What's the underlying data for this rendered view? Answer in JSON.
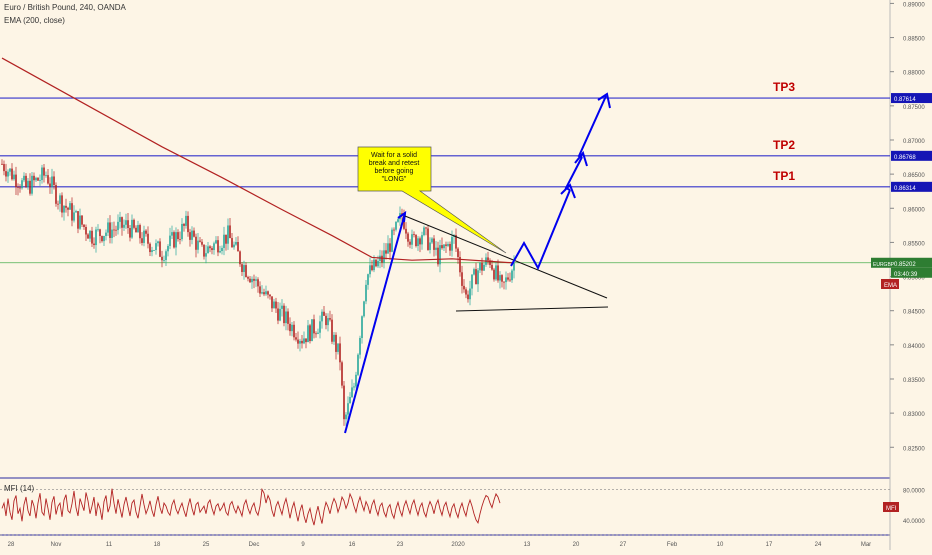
{
  "header": {
    "symbol_line": "Euro / British Pound, 240, OANDA",
    "indicator_line": "EMA (200, close)",
    "mfi_label": "MFI (14)"
  },
  "chart_data": [
    {
      "type": "candlestick",
      "title": "Euro / British Pound, 240, OANDA",
      "symbol": "EURGBP",
      "timeframe": "240",
      "x_axis": {
        "tick_labels": [
          "28",
          "Nov",
          "11",
          "18",
          "25",
          "Dec",
          "9",
          "16",
          "23",
          "2020",
          "13",
          "20",
          "27",
          "Feb",
          "10",
          "17",
          "24",
          "Mar"
        ]
      },
      "y_axis": {
        "range": [
          0.8205,
          0.8905
        ],
        "tick_labels": [
          "0.89000",
          "0.88500",
          "0.88000",
          "0.87500",
          "0.87000",
          "0.86500",
          "0.86000",
          "0.85500",
          "0.85000",
          "0.84500",
          "0.84000",
          "0.83500",
          "0.83000",
          "0.82500"
        ],
        "position": "right"
      },
      "price_anchors": [
        {
          "t": 0,
          "p": 0.8665
        },
        {
          "t": 12,
          "p": 0.863
        },
        {
          "t": 22,
          "p": 0.865
        },
        {
          "t": 28,
          "p": 0.8615
        },
        {
          "t": 45,
          "p": 0.856
        },
        {
          "t": 62,
          "p": 0.8575
        },
        {
          "t": 80,
          "p": 0.8535
        },
        {
          "t": 92,
          "p": 0.8575
        },
        {
          "t": 100,
          "p": 0.8535
        },
        {
          "t": 113,
          "p": 0.856
        },
        {
          "t": 120,
          "p": 0.852
        },
        {
          "t": 132,
          "p": 0.847
        },
        {
          "t": 150,
          "p": 0.841
        },
        {
          "t": 162,
          "p": 0.844
        },
        {
          "t": 169,
          "p": 0.838
        },
        {
          "t": 171,
          "p": 0.8285
        },
        {
          "t": 176,
          "p": 0.834
        },
        {
          "t": 182,
          "p": 0.85
        },
        {
          "t": 190,
          "p": 0.8525
        },
        {
          "t": 196,
          "p": 0.856
        },
        {
          "t": 200,
          "p": 0.859
        },
        {
          "t": 205,
          "p": 0.855
        },
        {
          "t": 210,
          "p": 0.8565
        },
        {
          "t": 218,
          "p": 0.853
        },
        {
          "t": 226,
          "p": 0.8555
        },
        {
          "t": 232,
          "p": 0.847
        },
        {
          "t": 238,
          "p": 0.851
        },
        {
          "t": 244,
          "p": 0.8525
        },
        {
          "t": 250,
          "p": 0.848
        },
        {
          "t": 256,
          "p": 0.852
        }
      ],
      "ema": {
        "name": "EMA",
        "period": 200,
        "color": "#b22222",
        "points": [
          {
            "t": 0,
            "p": 0.882
          },
          {
            "t": 40,
            "p": 0.8755
          },
          {
            "t": 80,
            "p": 0.869
          },
          {
            "t": 110,
            "p": 0.8645
          },
          {
            "t": 140,
            "p": 0.8598
          },
          {
            "t": 165,
            "p": 0.856
          },
          {
            "t": 185,
            "p": 0.8528
          },
          {
            "t": 205,
            "p": 0.8524
          },
          {
            "t": 225,
            "p": 0.8526
          },
          {
            "t": 245,
            "p": 0.8522
          },
          {
            "t": 256,
            "p": 0.852
          }
        ]
      },
      "horizontal_levels": [
        {
          "label": "TP3",
          "price": 0.87614,
          "price_label": "0.87614",
          "color": "#3333cc"
        },
        {
          "label": "TP2",
          "price": 0.86768,
          "price_label": "0.86768",
          "color": "#3333cc"
        },
        {
          "label": "TP1",
          "price": 0.86314,
          "price_label": "0.86314",
          "color": "#3333cc"
        },
        {
          "label": "",
          "price": 0.85202,
          "price_label": "0.85202",
          "color": "#4caf50"
        }
      ],
      "badges": {
        "symbol_badge": "EURGBP",
        "last_price": "0.85202",
        "countdown": "03:40:39",
        "ema_badge": "EMA"
      },
      "annotation": {
        "text": "Wait for a solid break and retest before going \"LONG\"",
        "lines": [
          "Wait for a solid",
          "break and retest",
          "before going",
          "\"LONG\""
        ]
      },
      "colors": {
        "background": "#fdf5e6",
        "up_candle": "#26a69a",
        "down_candle": "#b22222",
        "drawing": "#0000ee",
        "tp_label": "#c00000",
        "callout": "#ffff00"
      }
    },
    {
      "type": "line",
      "title": "MFI (14)",
      "y_axis": {
        "range": [
          20,
          95
        ],
        "tick_labels": [
          "80.0000",
          "40.0000"
        ]
      },
      "levels": [
        80,
        20
      ],
      "series": [
        {
          "name": "MFI",
          "color": "#b22222",
          "values": [
            55,
            62,
            45,
            68,
            50,
            40,
            65,
            72,
            48,
            55,
            38,
            60,
            70,
            52,
            45,
            66,
            58,
            42,
            62,
            75,
            50,
            46,
            68,
            55,
            40,
            63,
            71,
            47,
            58,
            62,
            44,
            66,
            73,
            52,
            49,
            61,
            78,
            56,
            45,
            68,
            60,
            52,
            76,
            65,
            48,
            58,
            70,
            45,
            62,
            55,
            40,
            64,
            72,
            50,
            58,
            81,
            62,
            48,
            67,
            55,
            43,
            60,
            70,
            57,
            45,
            62,
            66,
            50,
            42,
            58,
            74,
            60,
            48,
            55,
            65,
            52,
            44,
            60,
            71,
            56,
            48,
            62,
            58,
            50,
            46,
            60,
            66,
            54,
            48,
            56,
            62,
            52,
            44,
            58,
            68,
            55,
            46,
            60,
            63,
            50,
            54,
            58,
            48,
            62,
            66,
            55,
            47,
            58,
            61,
            52,
            56,
            62,
            50,
            46,
            60,
            64,
            55,
            49,
            58,
            52,
            45,
            60,
            66,
            55,
            48,
            57,
            62,
            51,
            46,
            58,
            80,
            75,
            62,
            72,
            66,
            52,
            44,
            58,
            64,
            55,
            47,
            60,
            68,
            56,
            42,
            55,
            63,
            50,
            38,
            52,
            60,
            45,
            36,
            48,
            55,
            42,
            33,
            47,
            58,
            45,
            35,
            52,
            63,
            57,
            48,
            60,
            68,
            62,
            50,
            58,
            70,
            65,
            55,
            62,
            74,
            68,
            58,
            50,
            62,
            70,
            60,
            52,
            64,
            58,
            48,
            60,
            66,
            54,
            46,
            58,
            62,
            50,
            44,
            56,
            60,
            48,
            42,
            55,
            63,
            52,
            45,
            58,
            65,
            56,
            48,
            60,
            66,
            55,
            46,
            57,
            62,
            50,
            44,
            56,
            64,
            58,
            48,
            60,
            66,
            54,
            46,
            58,
            63,
            52,
            44,
            56,
            61,
            50,
            43,
            55,
            62,
            52,
            45,
            58,
            66,
            58,
            48,
            40,
            36,
            48,
            58,
            66,
            72,
            70,
            62,
            56,
            66,
            74,
            70,
            62
          ]
        }
      ],
      "badge": "MFI"
    }
  ]
}
